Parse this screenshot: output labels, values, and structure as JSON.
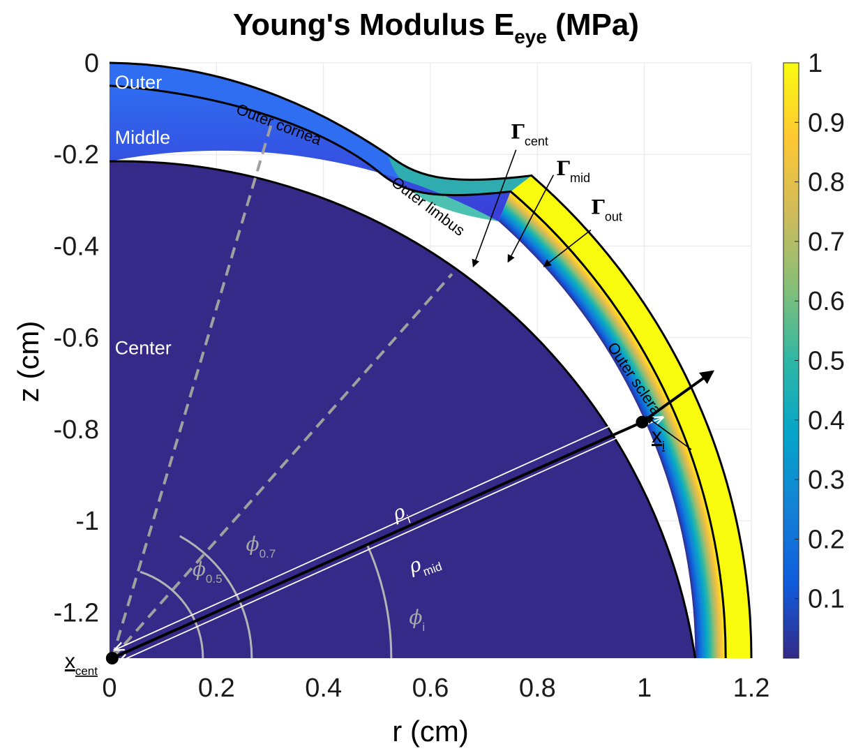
{
  "chart_data": {
    "type": "heatmap",
    "title": "Young's Modulus E",
    "title_subscript": "eye",
    "title_suffix": " (MPa)",
    "xlabel": "r (cm)",
    "ylabel": "z (cm)",
    "xlim": [
      0,
      1.2
    ],
    "ylim": [
      -1.3,
      0
    ],
    "xticks": [
      0,
      0.2,
      0.4,
      0.6,
      0.8,
      1,
      1.2
    ],
    "xtick_labels": [
      "0",
      "0.2",
      "0.4",
      "0.6",
      "0.8",
      "1",
      "1.2"
    ],
    "yticks": [
      0,
      -0.2,
      -0.4,
      -0.6,
      -0.8,
      -1,
      -1.2
    ],
    "ytick_labels": [
      "0",
      "-0.2",
      "-0.4",
      "-0.6",
      "-0.8",
      "-1",
      "-1.2"
    ],
    "grid": true,
    "colorbar": {
      "min": 0,
      "max": 1,
      "ticks": [
        1,
        0.9,
        0.8,
        0.7,
        0.6,
        0.5,
        0.4,
        0.3,
        0.2,
        0.1
      ],
      "tick_labels": [
        "1",
        "0.9",
        "0.8",
        "0.7",
        "0.6",
        "0.5",
        "0.4",
        "0.3",
        "0.2",
        "0.1"
      ],
      "colormap": "parula",
      "stops": [
        "#352a87",
        "#0f5cdd",
        "#1481d6",
        "#06a4ca",
        "#2eb7a4",
        "#87bf77",
        "#d1bb59",
        "#fec832",
        "#f9fb0e"
      ]
    },
    "regions": [
      {
        "label": "Outer",
        "r": 0.01,
        "z": -0.02
      },
      {
        "label": "Middle",
        "r": 0.01,
        "z": -0.14
      },
      {
        "label": "Center",
        "r": 0.01,
        "z": -0.6
      }
    ],
    "surface_labels": [
      {
        "label": "Outer cornea",
        "r": 0.235,
        "z": -0.11,
        "angle_deg": 21
      },
      {
        "label": "Outer limbus",
        "r": 0.525,
        "z": -0.265,
        "angle_deg": 37
      },
      {
        "label": "Outer sclera",
        "r": 0.93,
        "z": -0.62,
        "angle_deg": 56
      }
    ],
    "boundary_labels": [
      {
        "symbol": "Γ",
        "subscript": "cent",
        "text_r": 0.75,
        "text_z": -0.165,
        "arrow_from": [
          0.76,
          -0.19
        ],
        "arrow_to": [
          0.68,
          -0.445
        ]
      },
      {
        "symbol": "Γ",
        "subscript": "mid",
        "text_r": 0.835,
        "text_z": -0.245,
        "arrow_from": [
          0.83,
          -0.245
        ],
        "arrow_to": [
          0.745,
          -0.435
        ]
      },
      {
        "symbol": "Γ",
        "subscript": "out",
        "text_r": 0.9,
        "text_z": -0.33,
        "arrow_from": [
          0.9,
          -0.365
        ],
        "arrow_to": [
          0.812,
          -0.445
        ]
      }
    ],
    "point_labels": [
      {
        "label": "x",
        "subscript": "cent",
        "r": 0.005,
        "z": -1.3
      },
      {
        "label": "x",
        "subscript": "i",
        "r": 1.02,
        "z": -0.875
      }
    ],
    "angle_labels": [
      {
        "symbol": "ϕ",
        "subscript": "0.5",
        "r": 0.155,
        "z": -1.12
      },
      {
        "symbol": "ϕ",
        "subscript": "0.7",
        "r": 0.255,
        "z": -1.065
      },
      {
        "symbol": "ϕ",
        "subscript": "i",
        "r": 0.56,
        "z": -1.225
      }
    ],
    "radius_labels": [
      {
        "symbol": "ρ",
        "subscript": "i",
        "r": 0.535,
        "z": -1.0
      },
      {
        "symbol": "ρ",
        "subscript": "mid",
        "r": 0.565,
        "z": -1.115
      }
    ],
    "geometry": {
      "center": [
        0.005,
        -1.3
      ],
      "rho_cent": 1.09,
      "rho_mid": 1.147,
      "rho_out": 1.195,
      "cornea_apex_z": 0,
      "cornea_inner_apex_z": -0.05,
      "center_apex_z": -0.215,
      "phi_0_5_deg": 57.4,
      "phi_0_7_deg": 48.5,
      "phi_i_deg": 24.0
    }
  }
}
